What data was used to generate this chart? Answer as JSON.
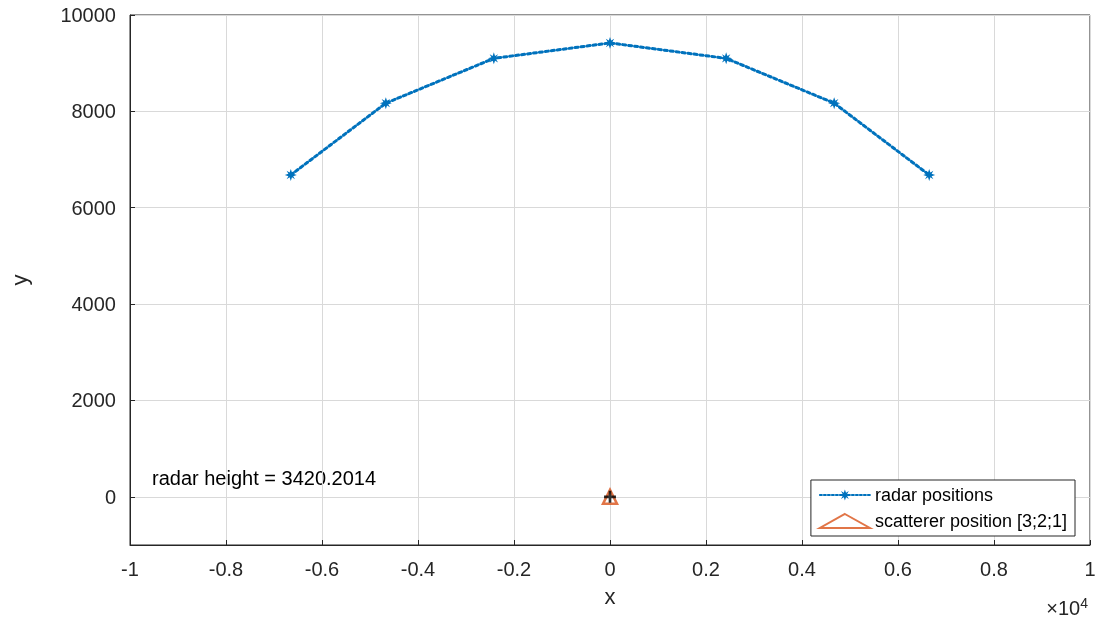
{
  "chart_data": {
    "type": "line",
    "xlabel": "x",
    "ylabel": "y",
    "xlim": [
      -1,
      1
    ],
    "xticks": [
      -1,
      -0.8,
      -0.6,
      -0.4,
      -0.2,
      0,
      0.2,
      0.4,
      0.6,
      0.8,
      1
    ],
    "ylim": [
      -1000,
      10000
    ],
    "yticks": [
      0,
      2000,
      4000,
      6000,
      8000,
      10000
    ],
    "grid": true,
    "legend": "bottom right",
    "line_style": "dotted",
    "series": [
      {
        "name": "radar positions",
        "marker": "star",
        "color": "#0072bd",
        "x": [
          -0.665,
          -0.467,
          -0.242,
          0,
          0.242,
          0.467,
          0.665
        ],
        "values": [
          6680,
          8170,
          9100,
          9420,
          9100,
          8170,
          6680
        ]
      },
      {
        "name": "scatterer position [3;2;1]",
        "type": "scatter",
        "marker": "triangle",
        "color": "#d95319",
        "x": [
          0
        ],
        "values": [
          0
        ]
      },
      {
        "type": "scatter",
        "marker": "cross",
        "color": "#000000",
        "x": [
          0
        ],
        "values": [
          0
        ]
      }
    ],
    "annotations": [
      "radar height = 3420.2014",
      "×10$^{4}$"
    ]
  }
}
